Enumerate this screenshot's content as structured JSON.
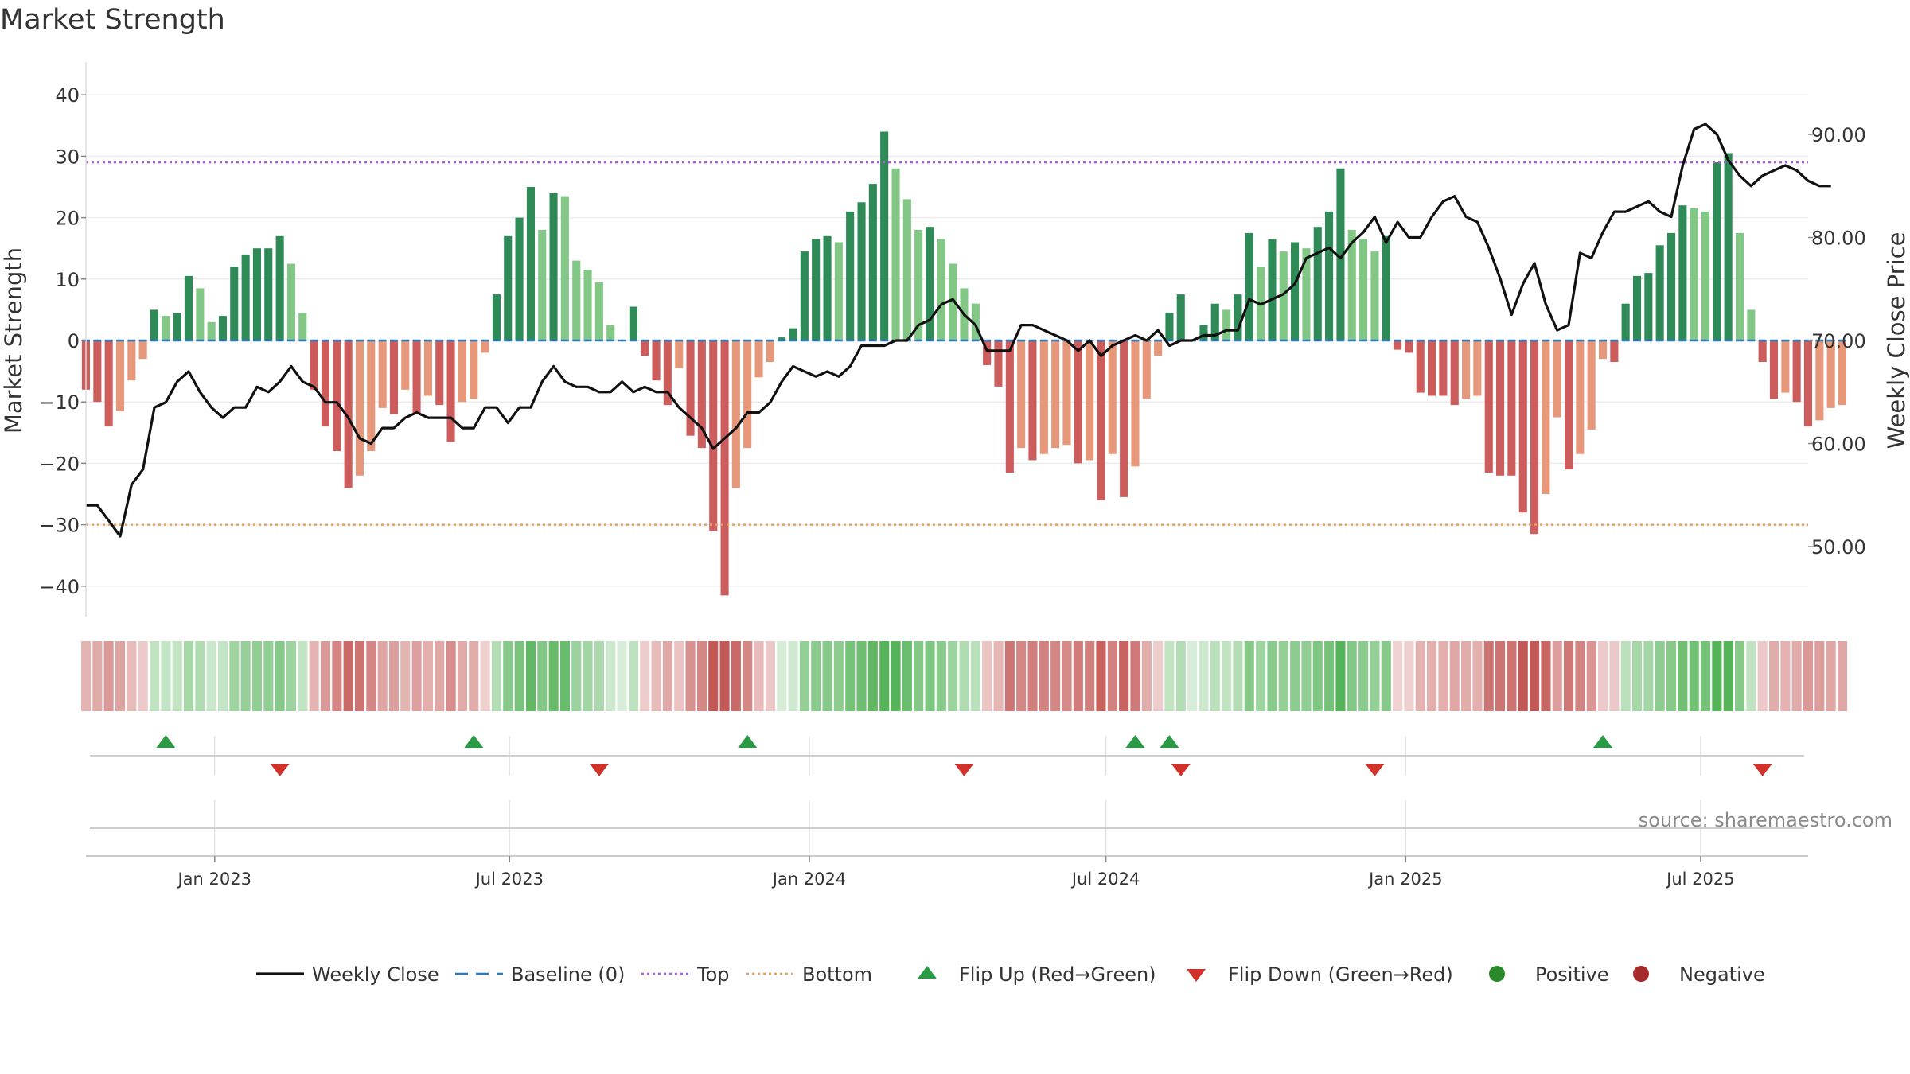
{
  "chart_data": {
    "type": "bar",
    "title": "Market Strength",
    "ylabel_left": "Market Strength",
    "ylabel_right": "Weekly Close Price",
    "source": "source: sharemaestro.com",
    "x_range": [
      "2022-10-14",
      "2025-09-05"
    ],
    "y_left_range": [
      -46,
      46
    ],
    "y_right_range": [
      45,
      96
    ],
    "y_left_ticks": [
      40,
      30,
      20,
      10,
      0,
      -10,
      -20,
      -30,
      -40
    ],
    "y_left_tick_labels": [
      "40",
      "30",
      "20",
      "10",
      "0",
      "−10",
      "−20",
      "−30",
      "−40"
    ],
    "y_right_ticks": [
      90,
      80,
      70,
      60,
      50
    ],
    "y_right_tick_labels": [
      "90.00",
      "80.00",
      "70.00",
      "60.00",
      "50.00"
    ],
    "x_ticks": [
      {
        "date": "2023-01-01",
        "label": "Jan 2023"
      },
      {
        "date": "2023-07-01",
        "label": "Jul 2023"
      },
      {
        "date": "2024-01-01",
        "label": "Jan 2024"
      },
      {
        "date": "2024-07-01",
        "label": "Jul 2024"
      },
      {
        "date": "2025-01-01",
        "label": "Jan 2025"
      },
      {
        "date": "2025-07-01",
        "label": "Jul 2025"
      }
    ],
    "reference_lines": {
      "baseline": 0,
      "top": 29,
      "bottom": -30
    },
    "series": [
      {
        "name": "Market Strength",
        "axis": "left",
        "start_date": "2022-10-14",
        "interval_days": 7,
        "values": [
          -8,
          -10,
          -14,
          -11.5,
          -6.5,
          -3,
          5,
          4,
          4.5,
          10.5,
          8.5,
          3,
          4,
          12,
          14,
          15,
          15,
          17,
          12.5,
          4.5,
          -8,
          -14,
          -18,
          -24,
          -22,
          -18,
          -11,
          -12,
          -8,
          -12,
          -9,
          -10.5,
          -16.5,
          -10,
          -9.5,
          -2,
          7.5,
          17,
          20,
          25,
          18,
          24,
          23.5,
          13,
          11.5,
          9.5,
          2.5,
          0,
          5.5,
          -2.5,
          -6.5,
          -10.5,
          -4.5,
          -15.5,
          -17.5,
          -31,
          -41.5,
          -24,
          -17.5,
          -6,
          -3.5,
          0.5,
          2,
          14.5,
          16.5,
          17,
          16,
          21,
          22.5,
          25.5,
          34,
          28,
          23,
          18,
          18.5,
          16.5,
          12.5,
          8.5,
          6,
          -4,
          -7.5,
          -21.5,
          -17.5,
          -19.5,
          -18.5,
          -17.5,
          -17,
          -20,
          -19.5,
          -26,
          -18.5,
          -25.5,
          -20.5,
          -9.5,
          -2.5,
          4.5,
          7.5,
          0,
          2.5,
          6,
          5,
          7.5,
          17.5,
          12,
          16.5,
          14.5,
          16,
          15,
          18.5,
          21,
          28,
          18,
          16.5,
          14.5,
          17,
          -1.5,
          -2,
          -8.5,
          -9,
          -9,
          -10.5,
          -9.5,
          -9,
          -21.5,
          -22,
          -22,
          -28,
          -31.5,
          -25,
          -12.5,
          -21,
          -18.5,
          -14.5,
          -3,
          -3.5,
          6,
          10.5,
          11,
          15.5,
          17.5,
          22,
          21.5,
          21,
          29,
          30.5,
          17.5,
          5,
          -3.5,
          -9.5,
          -8.5,
          -10,
          -14,
          -13,
          -11,
          -10.5
        ]
      },
      {
        "name": "Weekly Close",
        "axis": "right",
        "start_date": "2022-10-14",
        "interval_days": 7,
        "values": [
          54,
          54,
          52.5,
          51,
          56,
          57.5,
          63.5,
          64,
          66,
          67,
          65,
          63.5,
          62.5,
          63.5,
          63.5,
          65.5,
          65,
          66,
          67.5,
          66,
          65.5,
          64,
          64,
          62.5,
          60.5,
          60,
          61.5,
          61.5,
          62.5,
          63,
          62.5,
          62.5,
          62.5,
          61.5,
          61.5,
          63.5,
          63.5,
          62,
          63.5,
          63.5,
          66,
          67.5,
          66,
          65.5,
          65.5,
          65,
          65,
          66,
          65,
          65.5,
          65,
          65,
          63.5,
          62.5,
          61.5,
          59.5,
          60.5,
          61.5,
          63,
          63,
          64,
          66,
          67.5,
          67,
          66.5,
          67,
          66.5,
          67.5,
          69.5,
          69.5,
          69.5,
          70,
          70,
          71.5,
          72,
          73.5,
          74,
          72.5,
          71.5,
          69,
          69,
          69,
          71.5,
          71.5,
          71,
          70.5,
          70,
          69,
          70,
          68.5,
          69.5,
          70,
          70.5,
          70,
          71,
          69.5,
          70,
          70,
          70.5,
          70.5,
          71,
          71,
          74,
          73.5,
          74,
          74.5,
          75.5,
          78,
          78.5,
          79,
          78,
          79.5,
          80.5,
          82,
          79.5,
          81.5,
          80,
          80,
          82,
          83.5,
          84,
          82,
          81.5,
          79,
          76,
          72.5,
          75.5,
          77.5,
          73.5,
          71,
          71.5,
          78.5,
          78,
          80.5,
          82.5,
          82.5,
          83,
          83.5,
          82.5,
          82,
          87,
          90.5,
          91,
          90,
          87.5,
          86,
          85,
          86,
          86.5,
          87,
          86.5,
          85.5,
          85,
          85
        ]
      }
    ],
    "flip_up_dates": [
      "2022-12-02",
      "2023-06-09",
      "2023-11-24",
      "2024-07-19",
      "2024-08-09",
      "2025-05-02"
    ],
    "flip_down_dates": [
      "2023-02-10",
      "2023-08-25",
      "2024-04-05",
      "2024-08-16",
      "2024-12-13",
      "2025-08-08"
    ],
    "legend": {
      "position": "bottom",
      "entries": [
        {
          "label": "Weekly Close",
          "symbol": "line",
          "color": "#111111"
        },
        {
          "label": "Baseline (0)",
          "symbol": "dash",
          "color": "#2b7bba"
        },
        {
          "label": "Top",
          "symbol": "dot",
          "color": "#b05cd8"
        },
        {
          "label": "Bottom",
          "symbol": "dot",
          "color": "#e8a060"
        },
        {
          "label": "Flip Up (Red→Green)",
          "symbol": "triangle-up",
          "color": "#2a9a45"
        },
        {
          "label": "Flip Down (Green→Red)",
          "symbol": "triangle-down",
          "color": "#d0322a"
        },
        {
          "label": "Positive",
          "symbol": "circle",
          "color": "#2a8a2a"
        },
        {
          "label": "Negative",
          "symbol": "circle",
          "color": "#a62a2a"
        }
      ]
    },
    "colors": {
      "pos_strong": "#2e8b57",
      "pos_weak": "#82c785",
      "neg_strong": "#cd5c5c",
      "neg_weak": "#e8987a",
      "top_line": "#b05cd8",
      "bottom_line": "#e8a060",
      "baseline": "#2b7bba",
      "price_line": "#111111",
      "flip_up": "#2a9a45",
      "flip_down": "#d0322a"
    }
  }
}
